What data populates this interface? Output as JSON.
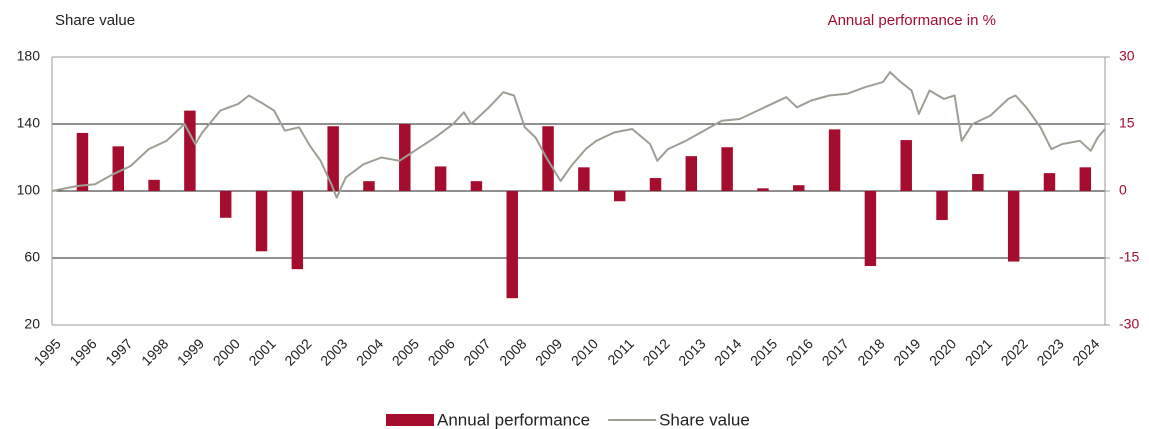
{
  "chart_data": {
    "type": "combo",
    "y_axis_label": "Share value",
    "y2_axis_label": "Annual performance in %",
    "xlim": [
      1994.8,
      2024.2
    ],
    "xticks": [
      1995,
      1996,
      1997,
      1998,
      1999,
      2000,
      2001,
      2002,
      2003,
      2004,
      2005,
      2006,
      2007,
      2008,
      2009,
      2010,
      2011,
      2012,
      2013,
      2014,
      2015,
      2016,
      2017,
      2018,
      2019,
      2020,
      2021,
      2022,
      2023,
      2024
    ],
    "ylim": [
      20,
      180
    ],
    "yticks": [
      20,
      60,
      100,
      140,
      180
    ],
    "y2lim": [
      -30,
      30
    ],
    "y2ticks": [
      -30,
      -15,
      0,
      15,
      30
    ],
    "grid": true,
    "legend": "bottom",
    "series": [
      {
        "name": "Annual performance",
        "type": "bar",
        "axis": "y2",
        "color": "#a50d2f",
        "x": [
          1996,
          1997,
          1998,
          1999,
          2000,
          2001,
          2002,
          2003,
          2004,
          2005,
          2006,
          2007,
          2008,
          2009,
          2010,
          2011,
          2012,
          2013,
          2014,
          2015,
          2016,
          2017,
          2018,
          2019,
          2020,
          2021,
          2022,
          2023,
          2024
        ],
        "values": [
          13,
          10,
          2.5,
          18,
          -6,
          -13.5,
          -17.5,
          14.5,
          2.2,
          15,
          5.5,
          2.2,
          -24,
          14.5,
          5.3,
          -2.3,
          2.9,
          7.8,
          9.8,
          0.6,
          1.3,
          13.8,
          -16.8,
          11.4,
          -6.5,
          3.8,
          -15.8,
          4,
          5.3
        ]
      },
      {
        "name": "Share value",
        "type": "line",
        "color": "#a09e94",
        "x": [
          1994.8,
          1995.5,
          1996,
          1996.5,
          1997,
          1997.5,
          1998,
          1998.5,
          1998.8,
          1999,
          1999.5,
          2000,
          2000.3,
          2000.7,
          2001,
          2001.3,
          2001.7,
          2002,
          2002.3,
          2002.6,
          2002.75,
          2003,
          2003.5,
          2004,
          2004.5,
          2005,
          2005.5,
          2006,
          2006.3,
          2006.5,
          2007,
          2007.4,
          2007.7,
          2008,
          2008.3,
          2008.6,
          2009,
          2009.3,
          2009.7,
          2010,
          2010.5,
          2011,
          2011.5,
          2011.7,
          2012,
          2012.5,
          2013,
          2013.5,
          2014,
          2014.5,
          2015,
          2015.3,
          2015.6,
          2016,
          2016.5,
          2017,
          2017.5,
          2018,
          2018.2,
          2018.5,
          2018.8,
          2019,
          2019.3,
          2019.7,
          2020,
          2020.2,
          2020.5,
          2021,
          2021.5,
          2021.7,
          2022,
          2022.4,
          2022.7,
          2023,
          2023.5,
          2023.8,
          2024,
          2024.2
        ],
        "values": [
          100,
          103,
          104,
          110,
          115,
          125,
          130,
          140,
          128,
          135,
          148,
          152,
          157,
          152,
          148,
          136,
          138,
          127,
          118,
          104,
          96,
          108,
          116,
          120,
          118,
          125,
          132,
          140,
          147,
          140,
          150,
          159,
          157,
          138,
          132,
          120,
          106,
          115,
          125,
          130,
          135,
          137,
          128,
          118,
          125,
          130,
          136,
          142,
          143,
          148,
          153,
          156,
          150,
          154,
          157,
          158,
          162,
          165,
          171,
          165,
          160,
          146,
          160,
          155,
          157,
          130,
          140,
          145,
          155,
          157,
          150,
          138,
          125,
          128,
          130,
          124,
          132,
          137
        ]
      }
    ]
  }
}
